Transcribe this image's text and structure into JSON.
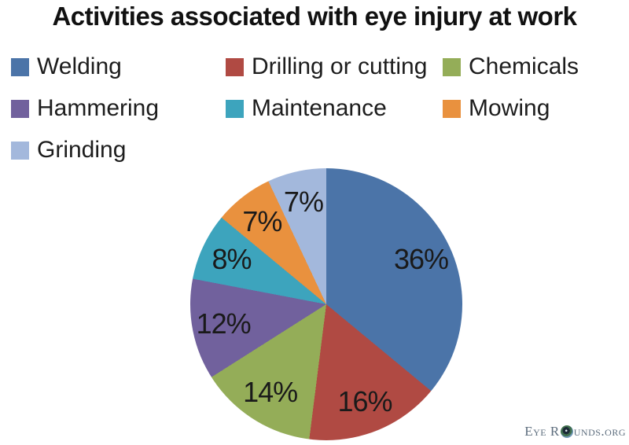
{
  "title": "Activities associated with eye injury at work",
  "watermark": {
    "prefix": "Eye R",
    "suffix": "unds.org",
    "icon": "eye-globe-icon",
    "color": "#5e6e7e"
  },
  "chart_data": {
    "type": "pie",
    "title": "Activities associated with eye injury at work",
    "categories": [
      "Welding",
      "Drilling or cutting",
      "Chemicals",
      "Hammering",
      "Maintenance",
      "Mowing",
      "Grinding"
    ],
    "values": [
      36,
      16,
      14,
      12,
      8,
      7,
      7
    ],
    "labels": [
      "36%",
      "16%",
      "14%",
      "12%",
      "8%",
      "7%",
      "7%"
    ],
    "colors": [
      "#4b74a8",
      "#b04a43",
      "#94ad58",
      "#71619d",
      "#3da4bd",
      "#e9913e",
      "#a3b8dc"
    ],
    "start_angle_deg": 0,
    "direction": "clockwise",
    "legend_position": "top-left",
    "legend_columns": 3,
    "background": "#ffffff"
  }
}
